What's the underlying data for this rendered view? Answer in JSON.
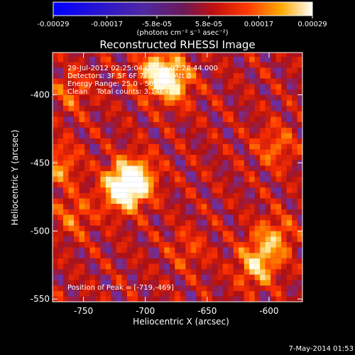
{
  "chart_data": {
    "type": "heatmap",
    "title": "Reconstructed RHESSI Image",
    "xlabel": "Heliocentric X (arcsec)",
    "ylabel": "Heliocentric Y (arcsec)",
    "xlim": [
      -775,
      -573
    ],
    "ylim": [
      -552,
      -369
    ],
    "xticks": [
      -750,
      -700,
      -650,
      -600
    ],
    "yticks": [
      -400,
      -450,
      -500,
      -550
    ],
    "annotations": [
      "29-Jul-2012 02:25:04.000 to 02:28:44.000",
      "Detectors: 3F 5F 6F 7F 8F 9F, Att 0",
      "Energy Range: 25.0 - 50.0 keV",
      "Clean    Total counts: 3.14E+03"
    ],
    "peak_label": "Position of Peak = [-719,-469]",
    "peak": [
      -719,
      -469
    ],
    "colorbar": {
      "ticks": [
        "-0.00029",
        "-0.00017",
        "-5.8e-05",
        "5.8e-05",
        "0.00017",
        "0.00029"
      ],
      "range": [
        -0.00029,
        0.00029
      ],
      "units": "(photons cm⁻² s⁻¹ asec⁻²)"
    },
    "bright_regions": [
      {
        "x": -719,
        "y": -469,
        "value": 0.00029
      },
      {
        "x": -708,
        "y": -462,
        "value": 0.00025
      },
      {
        "x": -690,
        "y": -383,
        "value": 0.00022
      },
      {
        "x": -678,
        "y": -391,
        "value": 0.0002
      },
      {
        "x": -610,
        "y": -525,
        "value": 0.00021
      },
      {
        "x": -596,
        "y": -505,
        "value": 0.00016
      },
      {
        "x": -595,
        "y": -438,
        "value": 0.00012
      },
      {
        "x": -770,
        "y": -452,
        "value": 0.00014
      },
      {
        "x": -758,
        "y": -489,
        "value": 0.00011
      },
      {
        "x": -760,
        "y": -398,
        "value": 0.0001
      },
      {
        "x": -666,
        "y": -514,
        "value": 8e-05
      }
    ],
    "colormap": [
      "#0000ff",
      "#4a2a9a",
      "#7030a0",
      "#b01010",
      "#ff3000",
      "#ff9a00",
      "#fff2b0",
      "#ffffff"
    ]
  },
  "footer": {
    "date": "7-May-2014 01:53"
  }
}
